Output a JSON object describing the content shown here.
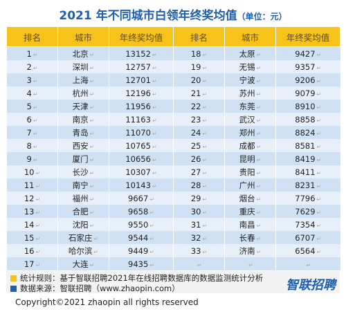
{
  "title": "2021 年不同城市白领年终奖均值",
  "unit": "（单位：元）",
  "headers": [
    "排名",
    "城市",
    "年终奖均值",
    "排名",
    "城市",
    "年终奖均值"
  ],
  "rows": [
    {
      "rank_a": "1",
      "city_a": "北京",
      "value_a": "13152",
      "rank_b": "18",
      "city_b": "太原",
      "value_b": "9427"
    },
    {
      "rank_a": "2",
      "city_a": "深圳",
      "value_a": "12757",
      "rank_b": "19",
      "city_b": "无锡",
      "value_b": "9357"
    },
    {
      "rank_a": "3",
      "city_a": "上海",
      "value_a": "12701",
      "rank_b": "20",
      "city_b": "宁波",
      "value_b": "9206"
    },
    {
      "rank_a": "4",
      "city_a": "杭州",
      "value_a": "12196",
      "rank_b": "21",
      "city_b": "苏州",
      "value_b": "9079"
    },
    {
      "rank_a": "5",
      "city_a": "天津",
      "value_a": "11956",
      "rank_b": "22",
      "city_b": "东莞",
      "value_b": "8910"
    },
    {
      "rank_a": "6",
      "city_a": "南京",
      "value_a": "11163",
      "rank_b": "23",
      "city_b": "武汉",
      "value_b": "8858"
    },
    {
      "rank_a": "7",
      "city_a": "青岛",
      "value_a": "11070",
      "rank_b": "24",
      "city_b": "郑州",
      "value_b": "8824"
    },
    {
      "rank_a": "8",
      "city_a": "西安",
      "value_a": "10765",
      "rank_b": "25",
      "city_b": "成都",
      "value_b": "8581"
    },
    {
      "rank_a": "9",
      "city_a": "厦门",
      "value_a": "10656",
      "rank_b": "26",
      "city_b": "昆明",
      "value_b": "8419"
    },
    {
      "rank_a": "10",
      "city_a": "长沙",
      "value_a": "10307",
      "rank_b": "27",
      "city_b": "贵阳",
      "value_b": "8411"
    },
    {
      "rank_a": "11",
      "city_a": "南宁",
      "value_a": "10143",
      "rank_b": "28",
      "city_b": "广州",
      "value_b": "8231"
    },
    {
      "rank_a": "12",
      "city_a": "福州",
      "value_a": "9667",
      "rank_b": "29",
      "city_b": "烟台",
      "value_b": "7796"
    },
    {
      "rank_a": "13",
      "city_a": "合肥",
      "value_a": "9658",
      "rank_b": "30",
      "city_b": "重庆",
      "value_b": "7629"
    },
    {
      "rank_a": "14",
      "city_a": "沈阳",
      "value_a": "9550",
      "rank_b": "31",
      "city_b": "南昌",
      "value_b": "7354"
    },
    {
      "rank_a": "15",
      "city_a": "石家庄",
      "value_a": "9544",
      "rank_b": "32",
      "city_b": "长春",
      "value_b": "6707"
    },
    {
      "rank_a": "16",
      "city_a": "哈尔滨",
      "value_a": "9449",
      "rank_b": "33",
      "city_b": "济南",
      "value_b": "6564"
    },
    {
      "rank_a": "17",
      "city_a": "大连",
      "value_a": "9435",
      "rank_b": "",
      "city_b": "",
      "value_b": ""
    }
  ],
  "notes": {
    "rule": "统计规则：基于智联招聘2021年在线招聘数据库的数据监测统计分析",
    "source": "数据来源：智联招聘（www.zhaopin.com）",
    "logo": "智联招聘",
    "rule_color": "#f7c21a",
    "source_color": "#1f5fb0"
  },
  "copyright": "Copyright©2021 zhaopin all rights reserved"
}
